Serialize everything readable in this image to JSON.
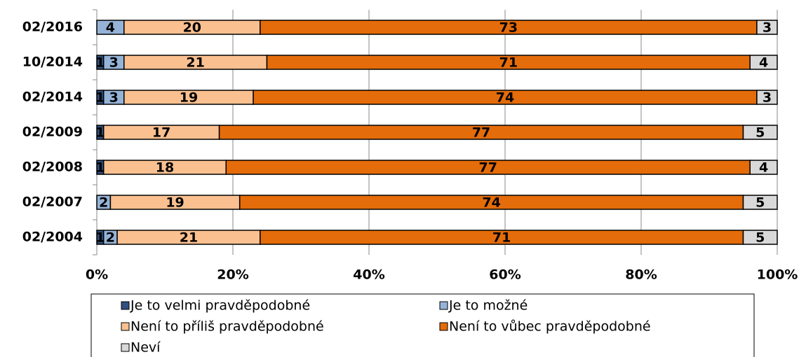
{
  "chart_data": {
    "type": "stacked-bar-horizontal",
    "categories": [
      "02/2016",
      "10/2014",
      "02/2014",
      "02/2009",
      "02/2008",
      "02/2007",
      "02/2004"
    ],
    "series": [
      {
        "name": "Je to velmi pravděpodobné",
        "color": "#2f4f7f",
        "values": [
          null,
          1,
          1,
          1,
          1,
          null,
          1
        ]
      },
      {
        "name": "Je to možné",
        "color": "#95b3d7",
        "values": [
          4,
          3,
          3,
          null,
          null,
          2,
          2
        ]
      },
      {
        "name": "Není to příliš pravděpodobné",
        "color": "#fac090",
        "values": [
          20,
          21,
          19,
          17,
          18,
          19,
          21
        ]
      },
      {
        "name": "Není to vůbec pravděpodobné",
        "color": "#e46c0a",
        "values": [
          73,
          71,
          74,
          77,
          77,
          74,
          71
        ]
      },
      {
        "name": "Neví",
        "color": "#d9d9d9",
        "values": [
          3,
          4,
          3,
          5,
          4,
          5,
          5
        ]
      }
    ],
    "xlim": [
      0,
      100
    ],
    "xticks": [
      {
        "value": 0,
        "label": "0%"
      },
      {
        "value": 20,
        "label": "20%"
      },
      {
        "value": 40,
        "label": "40%"
      },
      {
        "value": 60,
        "label": "60%"
      },
      {
        "value": 80,
        "label": "80%"
      },
      {
        "value": 100,
        "label": "100%"
      }
    ],
    "grid": true
  }
}
